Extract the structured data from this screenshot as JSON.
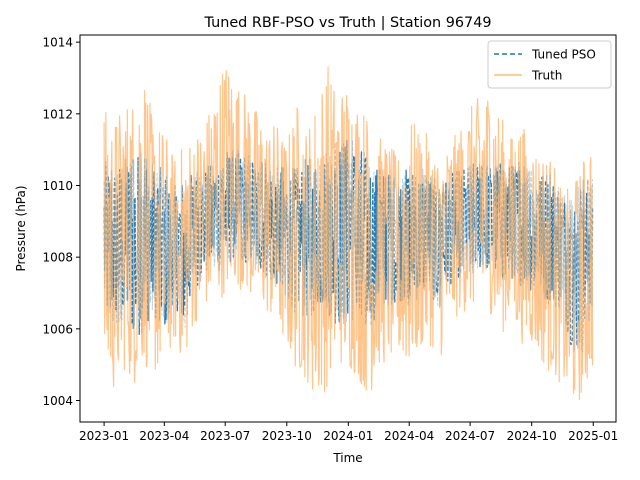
{
  "chart_data": {
    "type": "line",
    "title": "Tuned RBF-PSO vs Truth | Station 96749",
    "xlabel": "Time",
    "ylabel": "Pressure (hPa)",
    "xlim": [
      "2022-11-26",
      "2025-02-04"
    ],
    "ylim": [
      1003.4,
      1014.2
    ],
    "x_ticks": [
      "2023-01",
      "2023-04",
      "2023-07",
      "2023-10",
      "2024-01",
      "2024-04",
      "2024-07",
      "2024-10",
      "2025-01"
    ],
    "y_ticks": [
      1004,
      1006,
      1008,
      1010,
      1012,
      1014
    ],
    "legend_position": "top-right",
    "grid": false,
    "series": [
      {
        "name": "Tuned PSO",
        "color": "#1f77b4",
        "style": "dashed",
        "x": [
          "2023-01-01",
          "2023-01-15",
          "2023-02-01",
          "2023-02-15",
          "2023-03-01",
          "2023-03-15",
          "2023-04-01",
          "2023-04-15",
          "2023-05-01",
          "2023-05-15",
          "2023-06-01",
          "2023-06-15",
          "2023-07-01",
          "2023-07-15",
          "2023-08-01",
          "2023-08-15",
          "2023-09-01",
          "2023-09-15",
          "2023-10-01",
          "2023-10-15",
          "2023-11-01",
          "2023-11-15",
          "2023-12-01",
          "2023-12-15",
          "2024-01-01",
          "2024-01-15",
          "2024-02-01",
          "2024-02-15",
          "2024-03-01",
          "2024-03-15",
          "2024-04-01",
          "2024-04-15",
          "2024-05-01",
          "2024-05-15",
          "2024-06-01",
          "2024-06-15",
          "2024-07-01",
          "2024-07-15",
          "2024-08-01",
          "2024-08-15",
          "2024-09-01",
          "2024-09-15",
          "2024-10-01",
          "2024-10-15",
          "2024-11-01",
          "2024-11-15",
          "2024-12-01",
          "2024-12-15",
          "2024-12-31"
        ],
        "low": [
          1006.0,
          1006.2,
          1006.1,
          1005.6,
          1005.9,
          1006.4,
          1005.8,
          1006.8,
          1005.9,
          1007.1,
          1007.4,
          1007.6,
          1007.5,
          1008.0,
          1007.8,
          1007.6,
          1007.4,
          1007.2,
          1006.8,
          1006.4,
          1006.2,
          1006.5,
          1006.4,
          1006.0,
          1006.1,
          1006.2,
          1006.0,
          1006.4,
          1006.6,
          1006.8,
          1006.6,
          1006.8,
          1007.0,
          1006.5,
          1007.2,
          1007.4,
          1007.5,
          1007.6,
          1007.6,
          1007.2,
          1007.4,
          1007.2,
          1007.0,
          1006.8,
          1006.6,
          1006.4,
          1005.4,
          1005.2,
          1006.6
        ],
        "high": [
          1010.7,
          1010.6,
          1010.8,
          1010.9,
          1011.1,
          1010.7,
          1010.4,
          1010.0,
          1010.3,
          1010.4,
          1010.5,
          1010.7,
          1011.1,
          1011.0,
          1011.0,
          1010.8,
          1010.6,
          1010.5,
          1010.6,
          1010.5,
          1010.8,
          1010.9,
          1011.2,
          1011.3,
          1011.4,
          1011.2,
          1010.8,
          1010.5,
          1010.4,
          1010.2,
          1010.6,
          1010.5,
          1010.4,
          1010.1,
          1010.3,
          1010.5,
          1010.6,
          1010.7,
          1010.6,
          1010.7,
          1010.6,
          1010.7,
          1010.5,
          1010.4,
          1010.3,
          1009.9,
          1009.6,
          1010.2,
          1010.4
        ]
      },
      {
        "name": "Truth",
        "color": "#ffbb78",
        "style": "solid",
        "x": [
          "2023-01-01",
          "2023-01-15",
          "2023-02-01",
          "2023-02-15",
          "2023-03-01",
          "2023-03-15",
          "2023-04-01",
          "2023-04-15",
          "2023-05-01",
          "2023-05-15",
          "2023-06-01",
          "2023-06-15",
          "2023-07-01",
          "2023-07-15",
          "2023-08-01",
          "2023-08-15",
          "2023-09-01",
          "2023-09-15",
          "2023-10-01",
          "2023-10-15",
          "2023-11-01",
          "2023-11-15",
          "2023-12-01",
          "2023-12-15",
          "2024-01-01",
          "2024-01-15",
          "2024-02-01",
          "2024-02-15",
          "2024-03-01",
          "2024-03-15",
          "2024-04-01",
          "2024-04-15",
          "2024-05-01",
          "2024-05-15",
          "2024-06-01",
          "2024-06-15",
          "2024-07-01",
          "2024-07-15",
          "2024-08-01",
          "2024-08-15",
          "2024-09-01",
          "2024-09-15",
          "2024-10-01",
          "2024-10-15",
          "2024-11-01",
          "2024-11-15",
          "2024-12-01",
          "2024-12-15",
          "2024-12-31"
        ],
        "low": [
          1004.7,
          1004.2,
          1004.8,
          1004.4,
          1005.0,
          1004.6,
          1004.9,
          1005.6,
          1005.0,
          1006.1,
          1006.5,
          1006.8,
          1006.9,
          1007.2,
          1007.0,
          1006.6,
          1006.4,
          1006.0,
          1005.4,
          1004.8,
          1004.5,
          1003.8,
          1004.4,
          1005.0,
          1004.8,
          1004.6,
          1004.0,
          1004.9,
          1005.0,
          1005.2,
          1004.8,
          1005.3,
          1005.6,
          1005.0,
          1006.0,
          1006.4,
          1006.5,
          1006.6,
          1006.4,
          1005.8,
          1006.2,
          1005.6,
          1005.5,
          1005.0,
          1004.7,
          1004.4,
          1003.8,
          1004.0,
          1004.8
        ],
        "high": [
          1012.2,
          1011.8,
          1012.4,
          1012.5,
          1013.4,
          1011.8,
          1011.6,
          1010.8,
          1011.2,
          1011.4,
          1011.8,
          1012.6,
          1013.6,
          1013.0,
          1012.6,
          1012.2,
          1011.6,
          1011.8,
          1011.2,
          1012.4,
          1011.6,
          1012.5,
          1013.5,
          1012.6,
          1013.0,
          1012.4,
          1012.0,
          1011.4,
          1011.2,
          1010.8,
          1011.9,
          1011.6,
          1011.4,
          1010.8,
          1011.2,
          1011.6,
          1012.2,
          1012.5,
          1012.8,
          1012.0,
          1011.4,
          1011.8,
          1011.2,
          1011.0,
          1010.8,
          1009.8,
          1010.0,
          1010.6,
          1011.7
        ]
      }
    ]
  }
}
